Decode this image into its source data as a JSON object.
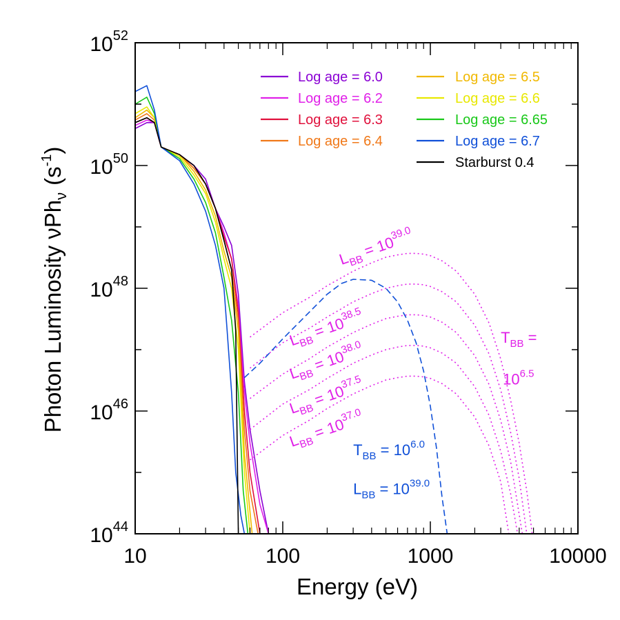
{
  "chart_data": {
    "type": "line",
    "xlabel": "Energy (eV)",
    "ylabel": "Photon Luminosity νPh",
    "ylabel_sub": "ν",
    "ylabel_unit": "(s",
    "ylabel_unit_sup": "-1",
    "ylabel_unit_end": ")",
    "x_scale": "log",
    "y_scale": "log",
    "xlim": [
      10,
      10000
    ],
    "ylim": [
      1e+44,
      1e+52
    ],
    "x_ticks": [
      {
        "value": 10,
        "label": "10"
      },
      {
        "value": 100,
        "label": "100"
      },
      {
        "value": 1000,
        "label": "1000"
      },
      {
        "value": 10000,
        "label": "10000"
      }
    ],
    "y_ticks": [
      {
        "value": 1e+44,
        "base": "10",
        "exp": "44"
      },
      {
        "value": 1e+46,
        "base": "10",
        "exp": "46"
      },
      {
        "value": 1e+48,
        "base": "10",
        "exp": "48"
      },
      {
        "value": 1e+50,
        "base": "10",
        "exp": "50"
      },
      {
        "value": 1e+52,
        "base": "10",
        "exp": "52"
      }
    ],
    "legend_position": "top-right",
    "legend": [
      {
        "label": "Log age = 6.0",
        "color": "#8a00d4"
      },
      {
        "label": "Log age = 6.2",
        "color": "#e020e8"
      },
      {
        "label": "Log age = 6.3",
        "color": "#e0103c"
      },
      {
        "label": "Log age = 6.4",
        "color": "#f07818"
      },
      {
        "label": "Log age = 6.5",
        "color": "#f0b800"
      },
      {
        "label": "Log age = 6.6",
        "color": "#e8e800"
      },
      {
        "label": "Log age = 6.65",
        "color": "#18c818"
      },
      {
        "label": "Log age = 6.7",
        "color": "#1050d8"
      },
      {
        "label": "Starburst 0.4",
        "color": "#000000"
      }
    ],
    "series": [
      {
        "label_index": 0,
        "color": "#8a00d4",
        "x": [
          10,
          12,
          13.5,
          15,
          20,
          25,
          30,
          35,
          40,
          45,
          50,
          55,
          60,
          70,
          80
        ],
        "y": [
          4e+50,
          5e+50,
          5e+50,
          2e+50,
          1.5e+50,
          1e+50,
          6e+49,
          2e+49,
          1e+49,
          5e+48,
          8e+47,
          3e+46,
          5e+45,
          5e+44,
          1e+44
        ]
      },
      {
        "label_index": 1,
        "color": "#e020e8",
        "x": [
          10,
          12,
          13.5,
          15,
          20,
          25,
          30,
          35,
          40,
          45,
          50,
          55,
          60,
          70,
          80
        ],
        "y": [
          4.5e+50,
          5.5e+50,
          5e+50,
          2e+50,
          1.5e+50,
          1e+50,
          5e+49,
          2e+49,
          8e+48,
          3e+48,
          5e+47,
          2e+46,
          3e+45,
          3e+44,
          1e+44
        ]
      },
      {
        "label_index": 2,
        "color": "#e0103c",
        "x": [
          10,
          12,
          13.5,
          15,
          20,
          25,
          30,
          35,
          40,
          45,
          50,
          55,
          60,
          70
        ],
        "y": [
          5e+50,
          6e+50,
          5e+50,
          2e+50,
          1.5e+50,
          9e+49,
          5e+49,
          2e+49,
          7e+48,
          3e+48,
          4e+47,
          1e+46,
          1e+45,
          1e+44
        ]
      },
      {
        "label_index": 3,
        "color": "#f07818",
        "x": [
          10,
          12,
          13.5,
          15,
          20,
          25,
          30,
          35,
          40,
          45,
          50,
          55,
          60,
          68
        ],
        "y": [
          5.5e+50,
          7e+50,
          5.5e+50,
          2e+50,
          1.5e+50,
          9e+49,
          5e+49,
          2e+49,
          6e+48,
          2e+48,
          3e+47,
          5e+45,
          5e+44,
          1e+44
        ]
      },
      {
        "label_index": 4,
        "color": "#f0b800",
        "x": [
          10,
          12,
          13.5,
          15,
          20,
          25,
          30,
          35,
          40,
          45,
          50,
          55,
          62
        ],
        "y": [
          6e+50,
          8e+50,
          6e+50,
          2e+50,
          1.5e+50,
          8e+49,
          4e+49,
          1.5e+49,
          4e+48,
          1.5e+48,
          2e+47,
          2e+45,
          1e+44
        ]
      },
      {
        "label_index": 5,
        "color": "#e8e800",
        "x": [
          10,
          12,
          13.5,
          15,
          20,
          25,
          30,
          35,
          40,
          45,
          50,
          55,
          60
        ],
        "y": [
          7e+50,
          9e+50,
          6e+50,
          2e+50,
          1.4e+50,
          7e+49,
          3.5e+49,
          1.2e+49,
          3e+48,
          1e+48,
          1e+47,
          1e+45,
          1e+44
        ]
      },
      {
        "label_index": 6,
        "color": "#18c818",
        "x": [
          10,
          12,
          13.5,
          15,
          20,
          25,
          30,
          35,
          40,
          45,
          50,
          54,
          58
        ],
        "y": [
          1e+51,
          1.3e+51,
          7e+50,
          2e+50,
          1.3e+50,
          6e+49,
          2.5e+49,
          8e+48,
          1.5e+48,
          3e+47,
          2e+46,
          5e+44,
          1e+44
        ]
      },
      {
        "label_index": 7,
        "color": "#1050d8",
        "x": [
          10,
          12,
          13.5,
          15,
          20,
          25,
          30,
          35,
          40,
          42,
          45,
          48,
          52,
          55
        ],
        "y": [
          1.6e+51,
          2e+51,
          8e+50,
          2e+50,
          1.2e+50,
          5e+49,
          1.8e+49,
          5e+48,
          1e+48,
          2e+47,
          2e+46,
          1e+45,
          2e+44,
          1e+44
        ]
      },
      {
        "label_index": 8,
        "color": "#000000",
        "x": [
          10,
          12,
          13.5,
          15,
          20,
          25,
          30,
          35,
          40,
          45,
          48,
          50
        ],
        "y": [
          5e+50,
          6e+50,
          5e+50,
          2e+50,
          1.5e+50,
          1e+50,
          5e+49,
          2e+49,
          6e+48,
          2e+48,
          2e+47,
          1e+44
        ]
      }
    ],
    "blackbody_curves": [
      {
        "style": "dotted",
        "color": "#e020e8",
        "T_log": 6.5,
        "L_log": 39.0,
        "x": [
          60,
          100,
          150,
          200,
          300,
          400,
          500,
          600,
          700,
          800,
          900,
          1000,
          1200,
          1500,
          2000,
          2500,
          3000,
          3500,
          4000,
          4500,
          4900
        ],
        "y": [
          1.6e+47,
          4e+47,
          7e+47,
          1.1e+48,
          1.9e+48,
          2.6e+48,
          3.2e+48,
          3.5e+48,
          3.7e+48,
          3.7e+48,
          3.6e+48,
          3.4e+48,
          2.8e+48,
          1.9e+48,
          8e+47,
          2.7e+47,
          7e+46,
          1.5e+46,
          3e+45,
          5e+44,
          1e+44
        ]
      },
      {
        "style": "dotted",
        "color": "#e020e8",
        "T_log": 6.5,
        "L_log": 38.5,
        "x": [
          60,
          100,
          150,
          200,
          300,
          400,
          500,
          600,
          700,
          800,
          900,
          1000,
          1200,
          1500,
          2000,
          2500,
          3000,
          3500,
          4000,
          4500
        ],
        "y": [
          5e+46,
          1.3e+47,
          2.2e+47,
          3.4e+47,
          6e+47,
          8.2e+47,
          1e+48,
          1.1e+48,
          1.17e+48,
          1.17e+48,
          1.14e+48,
          1.07e+48,
          8.8e+47,
          6e+47,
          2.5e+47,
          8.5e+46,
          2.2e+46,
          4.5e+45,
          8e+44,
          1e+44
        ]
      },
      {
        "style": "dotted",
        "color": "#e020e8",
        "T_log": 6.5,
        "L_log": 38.0,
        "x": [
          60,
          100,
          150,
          200,
          300,
          400,
          500,
          600,
          700,
          800,
          900,
          1000,
          1200,
          1500,
          2000,
          2500,
          3000,
          3500,
          4200
        ],
        "y": [
          1.6e+46,
          4e+46,
          7e+46,
          1.1e+47,
          1.9e+47,
          2.6e+47,
          3.2e+47,
          3.5e+47,
          3.7e+47,
          3.7e+47,
          3.6e+47,
          3.4e+47,
          2.8e+47,
          1.9e+47,
          8e+46,
          2.7e+46,
          7e+45,
          1.5e+45,
          1e+44
        ]
      },
      {
        "style": "dotted",
        "color": "#e020e8",
        "T_log": 6.5,
        "L_log": 37.5,
        "x": [
          60,
          100,
          150,
          200,
          300,
          400,
          500,
          600,
          700,
          800,
          900,
          1000,
          1200,
          1500,
          2000,
          2500,
          3000,
          3500,
          3900
        ],
        "y": [
          5e+45,
          1.3e+46,
          2.2e+46,
          3.4e+46,
          6e+46,
          8.2e+46,
          1e+47,
          1.1e+47,
          1.17e+47,
          1.17e+47,
          1.14e+47,
          1.07e+47,
          8.8e+46,
          6e+46,
          2.5e+46,
          8.5e+45,
          2.2e+45,
          4.5e+44,
          1e+44
        ]
      },
      {
        "style": "dotted",
        "color": "#e020e8",
        "T_log": 6.5,
        "L_log": 37.0,
        "x": [
          60,
          100,
          150,
          200,
          300,
          400,
          500,
          600,
          700,
          800,
          900,
          1000,
          1200,
          1500,
          2000,
          2500,
          3000,
          3400
        ],
        "y": [
          1.6e+45,
          4e+45,
          7e+45,
          1.1e+46,
          1.9e+46,
          2.6e+46,
          3.2e+46,
          3.5e+46,
          3.7e+46,
          3.7e+46,
          3.6e+46,
          3.4e+46,
          2.8e+46,
          1.9e+46,
          8e+45,
          2.7e+45,
          7e+44,
          1e+44
        ]
      },
      {
        "style": "dashed",
        "color": "#1050d8",
        "T_log": 6.0,
        "L_log": 39.0,
        "x": [
          55,
          70,
          100,
          150,
          200,
          250,
          300,
          400,
          500,
          600,
          700,
          800,
          900,
          1000,
          1100,
          1200,
          1300
        ],
        "y": [
          3.5e+46,
          6e+46,
          1.5e+47,
          4e+47,
          8e+47,
          1.2e+48,
          1.4e+48,
          1.35e+48,
          1e+48,
          6e+47,
          3e+47,
          1.3e+47,
          4.5e+46,
          1.2e+46,
          2.5e+45,
          4e+44,
          1e+44
        ]
      }
    ],
    "annotations": [
      {
        "key": "l39",
        "text": "L",
        "sub": "BB",
        "mid": " = 10",
        "sup": "39.0",
        "color": "#e020e8",
        "x": 250,
        "y": 2.4e+48,
        "rotate": -19
      },
      {
        "key": "l385",
        "text": "L",
        "sub": "BB",
        "mid": " = 10",
        "sup": "38.5",
        "color": "#e020e8",
        "x": 115,
        "y": 1.15e+47,
        "rotate": -19
      },
      {
        "key": "l380",
        "text": "L",
        "sub": "BB",
        "mid": " = 10",
        "sup": "38.0",
        "color": "#e020e8",
        "x": 115,
        "y": 3.3e+46,
        "rotate": -19
      },
      {
        "key": "l375",
        "text": "L",
        "sub": "BB",
        "mid": " = 10",
        "sup": "37.5",
        "color": "#e020e8",
        "x": 115,
        "y": 9e+45,
        "rotate": -19
      },
      {
        "key": "l370",
        "text": "L",
        "sub": "BB",
        "mid": " = 10",
        "sup": "37.0",
        "color": "#e020e8",
        "x": 115,
        "y": 2.6e+45,
        "rotate": -19
      },
      {
        "key": "tbb65a",
        "text": "T",
        "sub": "BB",
        "mid": " =",
        "sup": "",
        "color": "#e020e8",
        "x": 3000,
        "y": 1.3e+47,
        "rotate": 0
      },
      {
        "key": "tbb65b",
        "text": "10",
        "sub": "",
        "mid": "",
        "sup": "6.5",
        "color": "#e020e8",
        "x": 3100,
        "y": 2.7e+46,
        "rotate": 0
      },
      {
        "key": "tbb60",
        "text": "T",
        "sub": "BB",
        "mid": " = 10",
        "sup": "6.0",
        "color": "#1050d8",
        "x": 300,
        "y": 1.9e+45,
        "rotate": 0
      },
      {
        "key": "lbb39",
        "text": "L",
        "sub": "BB",
        "mid": " = 10",
        "sup": "39.0",
        "color": "#1050d8",
        "x": 300,
        "y": 4.4e+44,
        "rotate": 0
      }
    ]
  }
}
